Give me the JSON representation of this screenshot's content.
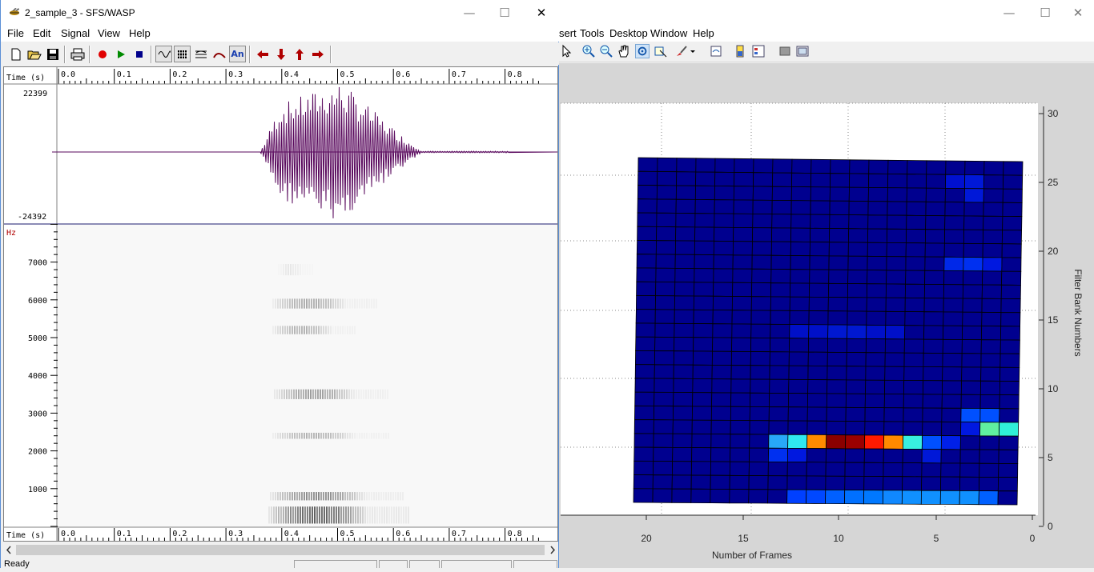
{
  "matlab": {
    "menus": [
      "sert",
      "Tools",
      "Desktop",
      "Window",
      "Help"
    ],
    "window_controls": {
      "minimize": "—",
      "maximize": "☐",
      "close": "✕"
    },
    "plot": {
      "xlabel": "Number of Frames",
      "ylabel": "Filter Bank Numbers",
      "xticks": [
        "20",
        "15",
        "10",
        "5",
        "0"
      ],
      "yticks": [
        "30",
        "25",
        "20",
        "15",
        "10",
        "5",
        "0"
      ],
      "colormap": "jet",
      "base_color": "#00008f"
    }
  },
  "sfs": {
    "title": "2_sample_3 - SFS/WASP",
    "window_controls": {
      "minimize": "—",
      "maximize": "☐",
      "close": "✕"
    },
    "menus": [
      "File",
      "Edit",
      "Signal",
      "View",
      "Help"
    ],
    "toolbar": {
      "new": "new-file",
      "open": "open-file",
      "save": "save-file",
      "print": "print",
      "record": "record",
      "play": "play",
      "stop": "stop",
      "wave": "waveform-view",
      "spec": "spectrogram-view",
      "lpc": "lpc-view",
      "pitch": "pitch-view",
      "annot": "An",
      "left": "scroll-left",
      "down": "scroll-down",
      "up": "scroll-up",
      "right": "scroll-right"
    },
    "time_label": "Time (s)",
    "time_ticks": [
      "0.0",
      "0.1",
      "0.2",
      "0.3",
      "0.4",
      "0.5",
      "0.6",
      "0.7",
      "0.8"
    ],
    "wave_max": "22399",
    "wave_min": "-24392",
    "wave_color": "#5a0a5e",
    "hz_label": "Hz",
    "freq_ticks": [
      "7000",
      "6000",
      "5000",
      "4000",
      "3000",
      "2000",
      "1000"
    ],
    "status": "Ready"
  }
}
